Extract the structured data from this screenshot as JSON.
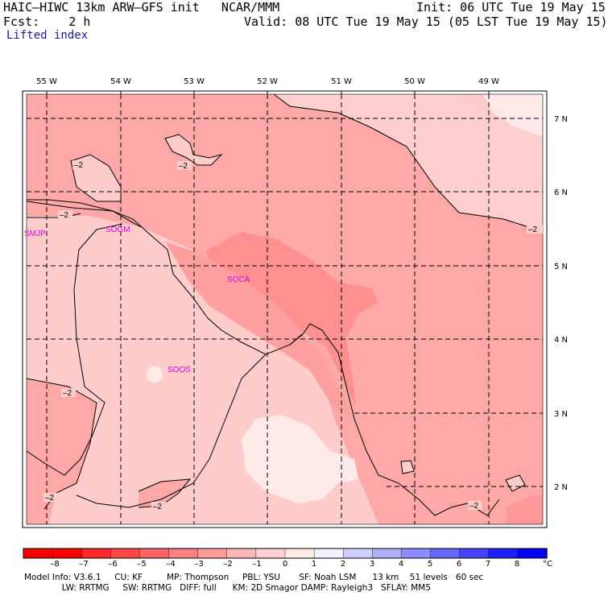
{
  "header": {
    "model_title": "HAIC–HIWC 13km ARW–GFS init   NCAR/MMM",
    "init": "Init: 06 UTC Tue 19 May 15",
    "fcst": "Fcst:    2 h",
    "valid": "Valid: 08 UTC Tue 19 May 15 (05 LST Tue 19 May 15)",
    "field": "Lifted index"
  },
  "map": {
    "longitudes": [
      "55 W",
      "54 W",
      "53 W",
      "52 W",
      "51 W",
      "50 W",
      "49 W"
    ],
    "latitudes": [
      "7 N",
      "6 N",
      "5 N",
      "4 N",
      "3 N",
      "2 N"
    ],
    "stations": [
      "SMJP",
      "SOGM",
      "SOCA",
      "SOOS"
    ],
    "contour_labels": [
      "–2",
      "–2",
      "–2",
      "–2",
      "–2",
      "–2",
      "–2",
      "–2"
    ]
  },
  "colorbar": {
    "labels": [
      "–8",
      "–7",
      "–6",
      "–5",
      "–4",
      "–3",
      "–2",
      "–1",
      "0",
      "1",
      "2",
      "3",
      "4",
      "5",
      "6",
      "7",
      "8"
    ],
    "unit": "°C",
    "colors": [
      "#ff0000",
      "#ff2828",
      "#ff4848",
      "#ff6464",
      "#ff8080",
      "#ff9c9c",
      "#ffb6b6",
      "#ffd0d0",
      "#ffeaea",
      "#f0f0ff",
      "#d0d0ff",
      "#b0b0ff",
      "#8c8cff",
      "#6868ff",
      "#4444ff",
      "#2020ff",
      "#0000ff"
    ]
  },
  "footer": {
    "line1": "Model Info: V3.6.1     CU: KF         MP: Thompson     PBL: YSU       SF: Noah LSM      13 km    51 levels   60 sec",
    "line2": "              LW: RRTMG     SW: RRTMG   DIFF: full      KM: 2D Smagor DAMP: Rayleigh3   SFLAY: MM5"
  }
}
